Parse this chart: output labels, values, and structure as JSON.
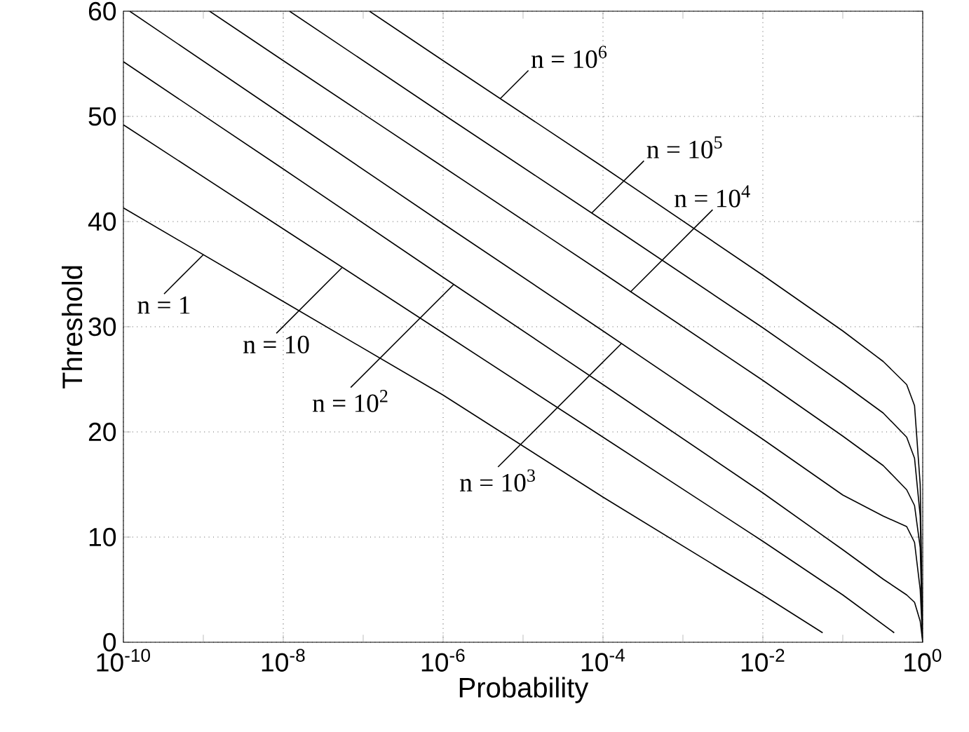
{
  "chart_data": {
    "type": "line",
    "xlabel": "Probability",
    "ylabel": "Threshold",
    "log": "x",
    "grid": true,
    "marker": "none",
    "line_style": "solid",
    "xlim": [
      1e-10,
      1
    ],
    "ylim": [
      0,
      60
    ],
    "xticks": [
      {
        "value": 1e-10,
        "label": "10$^{-10}$"
      },
      {
        "value": 1e-09,
        "label": null
      },
      {
        "value": 1e-08,
        "label": "10$^{-8}$"
      },
      {
        "value": 1e-07,
        "label": null
      },
      {
        "value": 1e-06,
        "label": "10$^{-6}$"
      },
      {
        "value": 1e-05,
        "label": null
      },
      {
        "value": 0.0001,
        "label": "10$^{-4}$"
      },
      {
        "value": 0.001,
        "label": null
      },
      {
        "value": 0.01,
        "label": "10$^{-2}$"
      },
      {
        "value": 0.1,
        "label": null
      },
      {
        "value": 1,
        "label": "10$^{0}$"
      }
    ],
    "yticks": [
      0,
      10,
      20,
      30,
      40,
      50,
      60
    ],
    "series": [
      {
        "color": "#000000",
        "x": [
          1e-10,
          1e-08,
          1e-06,
          0.0001,
          0.01,
          0.056
        ],
        "values": [
          41.3,
          32.4,
          23.5,
          13.8,
          4.5,
          0.9
        ]
      },
      {
        "color": "#000000",
        "x": [
          1e-10,
          1e-08,
          1e-06,
          0.0001,
          0.01,
          0.1,
          0.44
        ],
        "values": [
          49.2,
          39.3,
          29.4,
          19.5,
          9.6,
          4.5,
          0.9
        ]
      },
      {
        "color": "#000000",
        "x": [
          1e-10,
          1e-08,
          1e-06,
          0.0001,
          0.01,
          0.1,
          0.32,
          0.63,
          0.79,
          0.93,
          1
        ],
        "values": [
          55.2,
          45.0,
          34.7,
          24.5,
          14.2,
          8.8,
          6.0,
          4.5,
          3.8,
          2.0,
          0.0
        ]
      },
      {
        "color": "#000000",
        "x": [
          1.2e-10,
          1e-08,
          1e-06,
          0.0001,
          0.01,
          0.1,
          0.32,
          0.63,
          0.79,
          0.93,
          1
        ],
        "values": [
          60.0,
          50.1,
          39.8,
          29.6,
          19.3,
          14.0,
          12.0,
          11.0,
          9.5,
          5.0,
          0.0
        ]
      },
      {
        "color": "#000000",
        "x": [
          1.2e-09,
          1e-08,
          1e-06,
          0.0001,
          0.01,
          0.1,
          0.32,
          0.63,
          0.79,
          0.93,
          1
        ],
        "values": [
          60.0,
          55.3,
          45.2,
          35.1,
          24.9,
          19.6,
          16.8,
          14.5,
          13.0,
          9.0,
          0.0
        ]
      },
      {
        "color": "#000000",
        "x": [
          1.2e-08,
          1e-06,
          0.0001,
          0.01,
          0.1,
          0.32,
          0.63,
          0.79,
          0.93,
          1
        ],
        "values": [
          60.0,
          50.2,
          40.1,
          29.9,
          24.6,
          21.8,
          19.5,
          17.5,
          12.0,
          0.0
        ]
      },
      {
        "color": "#000000",
        "x": [
          1.2e-07,
          1e-06,
          0.0001,
          0.01,
          0.1,
          0.32,
          0.63,
          0.79,
          0.93,
          1
        ],
        "values": [
          60.0,
          55.3,
          45.2,
          34.9,
          29.6,
          26.7,
          24.5,
          22.5,
          15.0,
          0.0
        ]
      }
    ],
    "annotations": [
      {
        "text": "n = 1",
        "x": 1e-09,
        "y": 36.85
      },
      {
        "text": "n = 10",
        "x": 5.4e-08,
        "y": 35.6
      },
      {
        "text": "n = 10$^{2}$",
        "x": 1.35e-06,
        "y": 34.0
      },
      {
        "text": "n = 10$^{3}$",
        "x": 0.00017,
        "y": 28.4
      },
      {
        "text": "n = 10$^{4}$",
        "x": 0.00022,
        "y": 33.3
      },
      {
        "text": "n = 10$^{5}$",
        "x": 7.2e-05,
        "y": 40.8
      },
      {
        "text": "n = 10$^{6}$",
        "x": 5.2e-06,
        "y": 51.7
      }
    ]
  }
}
